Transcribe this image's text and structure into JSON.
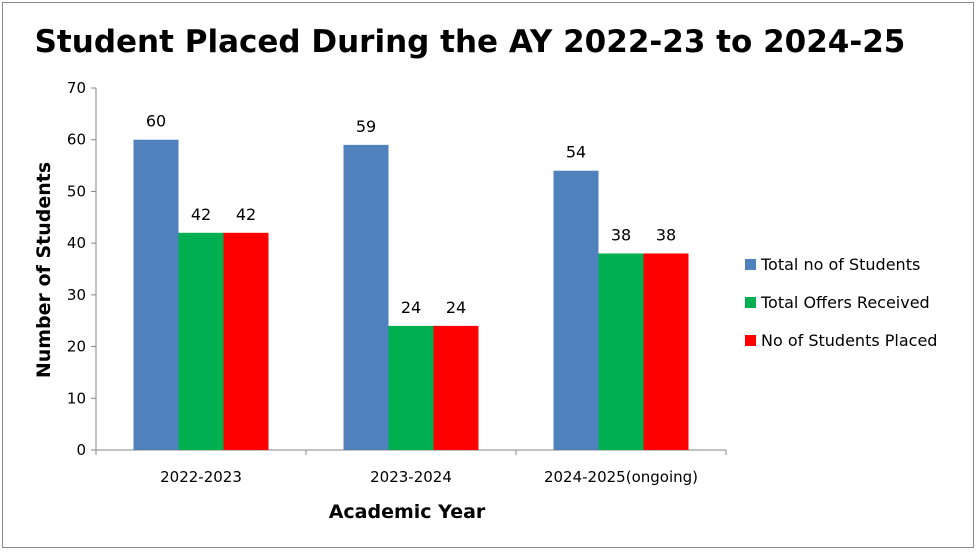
{
  "chart_data": {
    "type": "bar",
    "title": "Student Placed During the AY 2022-23 to 2024-25",
    "xlabel": "Academic Year",
    "ylabel": "Number of Students",
    "ylim": [
      0,
      70
    ],
    "yticks": [
      0,
      10,
      20,
      30,
      40,
      50,
      60,
      70
    ],
    "grid": false,
    "legend_position": "right",
    "categories": [
      "2022-2023",
      "2023-2024",
      "2024-2025(ongoing)"
    ],
    "series": [
      {
        "name": "Total no of Students",
        "color": "#4f81bd",
        "values": [
          60,
          59,
          54
        ]
      },
      {
        "name": "Total Offers Received",
        "color": "#00b050",
        "values": [
          42,
          24,
          38
        ]
      },
      {
        "name": "No of Students Placed",
        "color": "#ff0000",
        "values": [
          42,
          24,
          38
        ]
      }
    ]
  }
}
